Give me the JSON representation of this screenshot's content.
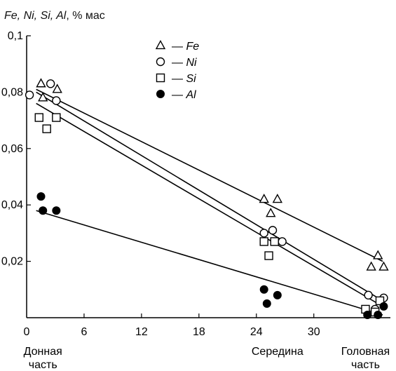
{
  "chart_data": {
    "type": "scatter",
    "ylabel": "Fe, Ni, Si, Al, % мас",
    "ylabel_parts": {
      "elements": "Fe, Ni, Si, Al",
      "unit": ", % мас"
    },
    "xlim": [
      0,
      38
    ],
    "ylim": [
      0,
      0.1
    ],
    "x_ticks": [
      0,
      6,
      12,
      18,
      24,
      30
    ],
    "y_ticks": [
      0.02,
      0.04,
      0.06,
      0.08,
      0.1
    ],
    "y_tick_labels": [
      "0,02",
      "0,04",
      "0,06",
      "0,08",
      "0,1"
    ],
    "x_tick_labels": [
      "0",
      "6",
      "12",
      "18",
      "24",
      "30"
    ],
    "grid": false,
    "legend_position": "top-center",
    "region_labels": [
      {
        "x": 1.7,
        "lines": [
          "Донная",
          "часть"
        ]
      },
      {
        "x": 26.2,
        "lines": [
          "Середина"
        ]
      },
      {
        "x": 35.4,
        "lines": [
          "Головная",
          "часть"
        ]
      }
    ],
    "series": [
      {
        "name": "Fe",
        "marker": "triangle-open",
        "legend_label": "— Fe",
        "points": [
          [
            1.5,
            0.083
          ],
          [
            1.7,
            0.078
          ],
          [
            3.2,
            0.081
          ],
          [
            24.8,
            0.042
          ],
          [
            25.5,
            0.037
          ],
          [
            26.2,
            0.042
          ],
          [
            36.0,
            0.018
          ],
          [
            36.7,
            0.022
          ],
          [
            37.3,
            0.018
          ]
        ],
        "trend": [
          [
            1.0,
            0.081
          ],
          [
            37.2,
            0.02
          ]
        ]
      },
      {
        "name": "Ni",
        "marker": "circle-open",
        "legend_label": "— Ni",
        "points": [
          [
            0.3,
            0.079
          ],
          [
            2.5,
            0.083
          ],
          [
            3.1,
            0.077
          ],
          [
            24.8,
            0.03
          ],
          [
            25.7,
            0.031
          ],
          [
            26.7,
            0.027
          ],
          [
            35.7,
            0.008
          ],
          [
            36.4,
            0.003
          ],
          [
            37.3,
            0.007
          ]
        ],
        "trend": [
          [
            1.0,
            0.08
          ],
          [
            37.2,
            0.006
          ]
        ]
      },
      {
        "name": "Si",
        "marker": "square-open",
        "legend_label": "— Si",
        "points": [
          [
            1.3,
            0.071
          ],
          [
            2.1,
            0.067
          ],
          [
            3.1,
            0.071
          ],
          [
            24.8,
            0.027
          ],
          [
            25.3,
            0.022
          ],
          [
            25.9,
            0.027
          ],
          [
            35.4,
            0.003
          ],
          [
            36.4,
            0.002
          ],
          [
            36.9,
            0.006
          ]
        ],
        "trend": [
          [
            1.0,
            0.076
          ],
          [
            37.2,
            0.004
          ]
        ]
      },
      {
        "name": "Al",
        "marker": "circle-filled",
        "legend_label": "— Al",
        "points": [
          [
            1.5,
            0.043
          ],
          [
            1.7,
            0.038
          ],
          [
            3.1,
            0.038
          ],
          [
            24.8,
            0.01
          ],
          [
            25.1,
            0.005
          ],
          [
            26.2,
            0.008
          ],
          [
            35.6,
            0.001
          ],
          [
            36.7,
            0.001
          ],
          [
            37.3,
            0.004
          ]
        ],
        "trend": [
          [
            1.0,
            0.038
          ],
          [
            37.2,
            0.001
          ]
        ]
      }
    ]
  }
}
